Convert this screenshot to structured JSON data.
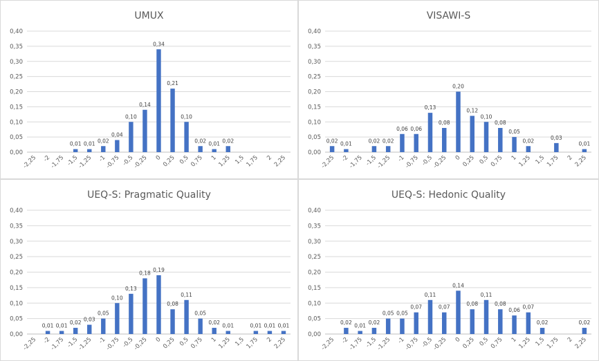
{
  "chart_data": [
    {
      "type": "bar",
      "title": "UMUX",
      "categories": [
        "-2,25",
        "-2",
        "-1,75",
        "-1,5",
        "-1,25",
        "-1",
        "-0,75",
        "-0,5",
        "-0,25",
        "0",
        "0,25",
        "0,5",
        "0,75",
        "1",
        "1,25",
        "1,5",
        "1,75",
        "2",
        "2,25"
      ],
      "values": [
        null,
        null,
        null,
        0.01,
        0.01,
        0.02,
        0.04,
        0.1,
        0.14,
        0.34,
        0.21,
        0.1,
        0.02,
        0.01,
        0.02,
        null,
        null,
        null,
        null
      ],
      "labels": [
        "",
        "",
        "",
        "0,01",
        "0,01",
        "0,02",
        "0,04",
        "0,10",
        "0,14",
        "0,34",
        "0,21",
        "0,10",
        "0,02",
        "0,01",
        "0,02",
        "",
        "",
        "",
        ""
      ],
      "y_ticks": [
        "0,00",
        "0,05",
        "0,10",
        "0,15",
        "0,20",
        "0,25",
        "0,30",
        "0,35",
        "0,40"
      ],
      "ylim": [
        0,
        0.4
      ],
      "grid": true
    },
    {
      "type": "bar",
      "title": "VISAWI-S",
      "categories": [
        "-2,25",
        "-2",
        "-1,75",
        "-1,5",
        "-1,25",
        "-1",
        "-0,75",
        "-0,5",
        "-0,25",
        "0",
        "0,25",
        "0,5",
        "0,75",
        "1",
        "1,25",
        "1,5",
        "1,75",
        "2",
        "2,25"
      ],
      "values": [
        0.02,
        0.01,
        null,
        0.02,
        0.02,
        0.06,
        0.06,
        0.13,
        0.08,
        0.2,
        0.12,
        0.1,
        0.08,
        0.05,
        0.02,
        null,
        0.03,
        null,
        0.01
      ],
      "labels": [
        "0,02",
        "0,01",
        "",
        "0,02",
        "0,02",
        "0,06",
        "0,06",
        "0,13",
        "0,08",
        "0,20",
        "0,12",
        "0,10",
        "0,08",
        "0,05",
        "0,02",
        "",
        "0,03",
        "",
        "0,01"
      ],
      "y_ticks": [
        "0,00",
        "0,05",
        "0,10",
        "0,15",
        "0,20",
        "0,25",
        "0,30",
        "0,35",
        "0,40"
      ],
      "ylim": [
        0,
        0.4
      ],
      "grid": true
    },
    {
      "type": "bar",
      "title": "UEQ-S: Pragmatic Quality",
      "categories": [
        "-2,25",
        "-2",
        "-1,75",
        "-1,5",
        "-1,25",
        "-1",
        "-0,75",
        "-0,5",
        "-0,25",
        "0",
        "0,25",
        "0,5",
        "0,75",
        "1",
        "1,25",
        "1,5",
        "1,75",
        "2",
        "2,25"
      ],
      "values": [
        null,
        0.01,
        0.01,
        0.02,
        0.03,
        0.05,
        0.1,
        0.13,
        0.18,
        0.19,
        0.08,
        0.11,
        0.05,
        0.02,
        0.01,
        null,
        0.01,
        0.01,
        0.01
      ],
      "labels": [
        "",
        "0,01",
        "0,01",
        "0,02",
        "0,03",
        "0,05",
        "0,10",
        "0,13",
        "0,18",
        "0,19",
        "0,08",
        "0,11",
        "0,05",
        "0,02",
        "0,01",
        "",
        "0,01",
        "0,01",
        "0,01"
      ],
      "y_ticks": [
        "0,00",
        "0,05",
        "0,10",
        "0,15",
        "0,20",
        "0,25",
        "0,30",
        "0,35",
        "0,40"
      ],
      "ylim": [
        0,
        0.4
      ],
      "grid": true
    },
    {
      "type": "bar",
      "title": "UEQ-S: Hedonic Quality",
      "categories": [
        "-2,25",
        "-2",
        "-1,75",
        "-1,5",
        "-1,25",
        "-1",
        "-0,75",
        "-0,5",
        "-0,25",
        "0",
        "0,25",
        "0,5",
        "0,75",
        "1",
        "1,25",
        "1,5",
        "1,75",
        "2",
        "2,25"
      ],
      "values": [
        null,
        0.02,
        0.01,
        0.02,
        0.05,
        0.05,
        0.07,
        0.11,
        0.07,
        0.14,
        0.08,
        0.11,
        0.08,
        0.06,
        0.07,
        0.02,
        null,
        null,
        0.02
      ],
      "labels": [
        "",
        "0,02",
        "0,01",
        "0,02",
        "0,05",
        "0,05",
        "0,07",
        "0,11",
        "0,07",
        "0,14",
        "0,08",
        "0,11",
        "0,08",
        "0,06",
        "0,07",
        "0,02",
        "",
        "",
        "0,02"
      ],
      "y_ticks": [
        "0,00",
        "0,05",
        "0,10",
        "0,15",
        "0,20",
        "0,25",
        "0,30",
        "0,35",
        "0,40"
      ],
      "ylim": [
        0,
        0.4
      ],
      "grid": true
    }
  ]
}
